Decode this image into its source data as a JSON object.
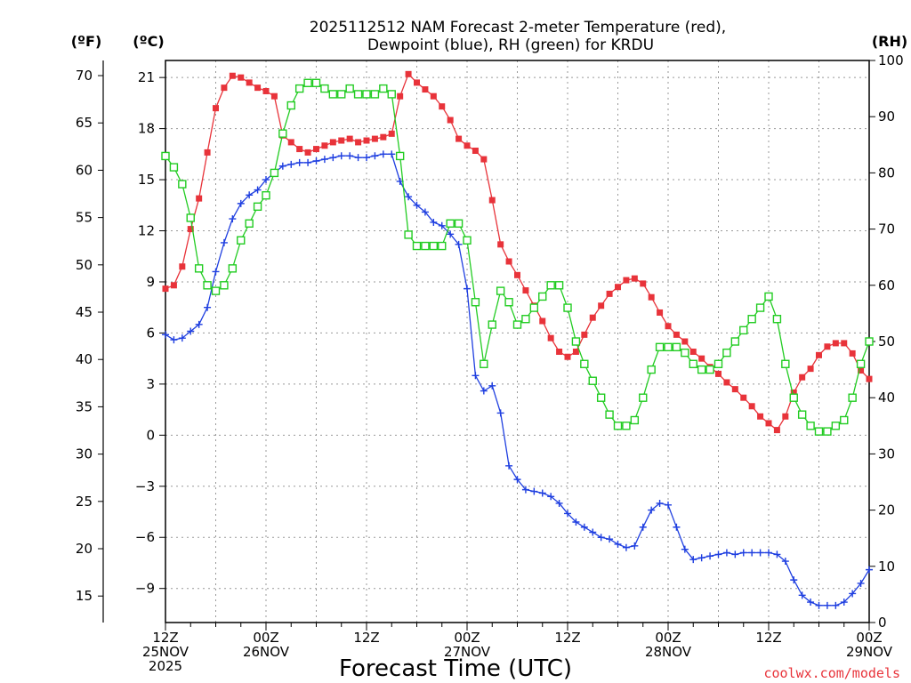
{
  "chart_data": {
    "type": "line",
    "title_line1": "2025112512 NAM Forecast 2-meter Temperature (red),",
    "title_line2": "Dewpoint (blue), RH (green) for KRDU",
    "units": {
      "fahrenheit": "(ºF)",
      "celsius": "(ºC)",
      "rh": "(RH)"
    },
    "xlabel": "Forecast Time (UTC)",
    "credit": "coolwx.com/models",
    "x_range_hours": [
      0,
      84
    ],
    "x_ticks": [
      {
        "hour": 0,
        "lines": [
          "12Z",
          "25NOV",
          "2025"
        ]
      },
      {
        "hour": 12,
        "lines": [
          "00Z",
          "26NOV"
        ]
      },
      {
        "hour": 24,
        "lines": [
          "12Z"
        ]
      },
      {
        "hour": 36,
        "lines": [
          "00Z",
          "27NOV"
        ]
      },
      {
        "hour": 48,
        "lines": [
          "12Z"
        ]
      },
      {
        "hour": 60,
        "lines": [
          "00Z",
          "28NOV"
        ]
      },
      {
        "hour": 72,
        "lines": [
          "12Z"
        ]
      },
      {
        "hour": 84,
        "lines": [
          "00Z",
          "29NOV"
        ]
      }
    ],
    "celsius_axis": {
      "range": [
        -11,
        22
      ],
      "ticks": [
        -9,
        -6,
        -3,
        0,
        3,
        6,
        9,
        12,
        15,
        18,
        21
      ]
    },
    "fahrenheit_ticks": [
      15,
      20,
      25,
      30,
      35,
      40,
      45,
      50,
      55,
      60,
      65,
      70
    ],
    "rh_axis": {
      "range": [
        0,
        100
      ],
      "ticks": [
        0,
        10,
        20,
        30,
        40,
        50,
        60,
        70,
        80,
        90,
        100
      ]
    },
    "grid": true,
    "series": [
      {
        "name": "Temperature",
        "units": "C",
        "color": "#e8333a",
        "marker": "filled-square",
        "values": [
          8.6,
          8.8,
          9.9,
          12.1,
          13.9,
          16.6,
          19.2,
          20.4,
          21.1,
          21.0,
          20.7,
          20.4,
          20.2,
          19.9,
          17.6,
          17.2,
          16.8,
          16.6,
          16.8,
          17.0,
          17.2,
          17.3,
          17.4,
          17.2,
          17.3,
          17.4,
          17.5,
          17.7,
          19.9,
          21.2,
          20.7,
          20.3,
          19.9,
          19.3,
          18.5,
          17.4,
          17.0,
          16.7,
          16.2,
          13.8,
          11.2,
          10.2,
          9.4,
          8.5,
          7.6,
          6.7,
          5.7,
          4.9,
          4.6,
          4.9,
          5.9,
          6.9,
          7.6,
          8.3,
          8.7,
          9.1,
          9.2,
          8.9,
          8.1,
          7.2,
          6.4,
          5.9,
          5.5,
          4.9,
          4.5,
          4.0,
          3.6,
          3.1,
          2.7,
          2.2,
          1.7,
          1.1,
          0.7,
          0.3,
          1.1,
          2.5,
          3.4,
          3.9,
          4.7,
          5.2,
          5.4,
          5.4,
          4.8,
          3.8,
          3.3
        ]
      },
      {
        "name": "Dewpoint",
        "units": "C",
        "color": "#1f3fe0",
        "marker": "plus",
        "values": [
          5.9,
          5.6,
          5.7,
          6.1,
          6.5,
          7.5,
          9.6,
          11.3,
          12.7,
          13.6,
          14.1,
          14.4,
          15.0,
          15.4,
          15.8,
          15.9,
          16.0,
          16.0,
          16.1,
          16.2,
          16.3,
          16.4,
          16.4,
          16.3,
          16.3,
          16.4,
          16.5,
          16.5,
          14.9,
          14.0,
          13.5,
          13.1,
          12.5,
          12.3,
          11.8,
          11.2,
          8.6,
          3.5,
          2.6,
          2.9,
          1.3,
          -1.8,
          -2.6,
          -3.2,
          -3.3,
          -3.4,
          -3.6,
          -4.0,
          -4.6,
          -5.1,
          -5.4,
          -5.7,
          -6.0,
          -6.1,
          -6.4,
          -6.6,
          -6.5,
          -5.4,
          -4.4,
          -4.0,
          -4.1,
          -5.4,
          -6.7,
          -7.3,
          -7.2,
          -7.1,
          -7.0,
          -6.9,
          -7.0,
          -6.9,
          -6.9,
          -6.9,
          -6.9,
          -7.0,
          -7.4,
          -8.5,
          -9.4,
          -9.8,
          -10.0,
          -10.0,
          -10.0,
          -9.8,
          -9.3,
          -8.7,
          -7.9
        ]
      },
      {
        "name": "RH",
        "units": "%",
        "color": "#22cc22",
        "marker": "open-square",
        "values": [
          83,
          81,
          78,
          72,
          63,
          60,
          59,
          60,
          63,
          68,
          71,
          74,
          76,
          80,
          87,
          92,
          95,
          96,
          96,
          95,
          94,
          94,
          95,
          94,
          94,
          94,
          95,
          94,
          83,
          69,
          67,
          67,
          67,
          67,
          71,
          71,
          68,
          57,
          46,
          53,
          59,
          57,
          53,
          54,
          56,
          58,
          60,
          60,
          56,
          50,
          46,
          43,
          40,
          37,
          35,
          35,
          36,
          40,
          45,
          49,
          49,
          49,
          48,
          46,
          45,
          45,
          46,
          48,
          50,
          52,
          54,
          56,
          58,
          54,
          46,
          40,
          37,
          35,
          34,
          34,
          35,
          36,
          40,
          46,
          50
        ]
      }
    ]
  }
}
